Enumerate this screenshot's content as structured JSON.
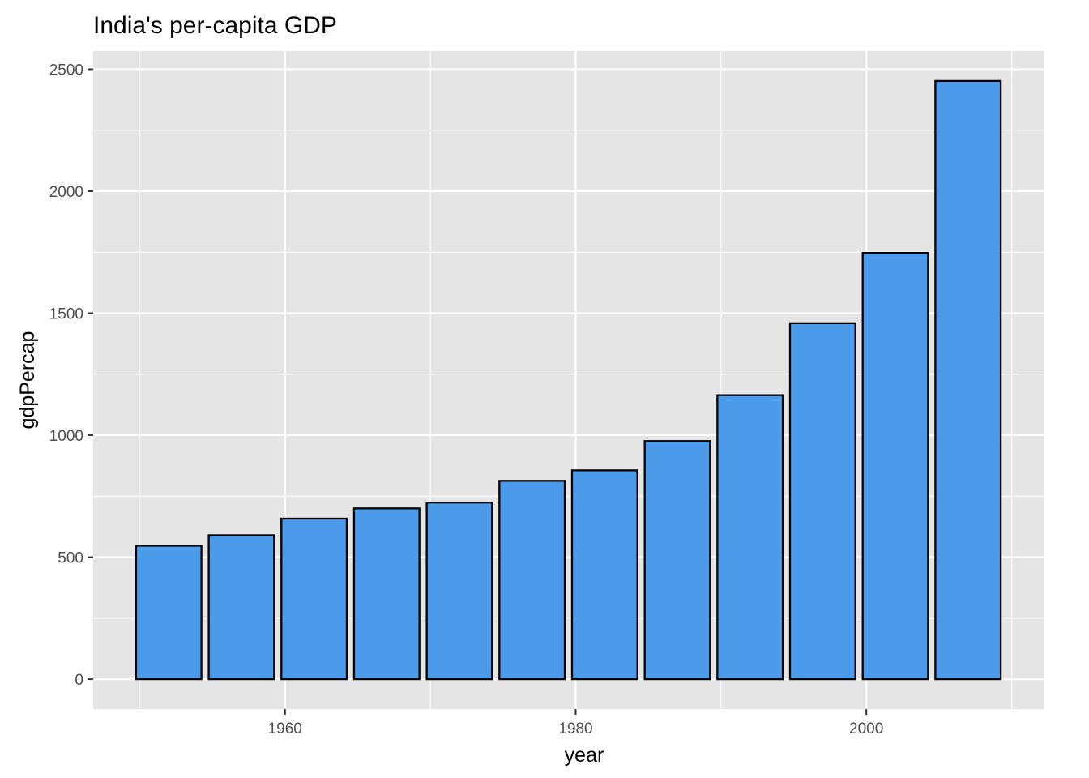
{
  "chart_data": {
    "type": "bar",
    "title": "India's per-capita GDP",
    "xlabel": "year",
    "ylabel": "gdpPercap",
    "x": [
      1952,
      1957,
      1962,
      1967,
      1972,
      1977,
      1982,
      1987,
      1992,
      1997,
      2002,
      2007
    ],
    "values": [
      547,
      590,
      658,
      700,
      724,
      813,
      856,
      976,
      1164,
      1459,
      1747,
      2452
    ],
    "xlim": [
      1946.8,
      2012.2
    ],
    "ylim": [
      -122.6,
      2574.6
    ],
    "x_ticks": [
      1960,
      1980,
      2000
    ],
    "x_minor_ticks": [
      1950,
      1970,
      1990,
      2010
    ],
    "y_ticks": [
      0,
      500,
      1000,
      1500,
      2000,
      2500
    ],
    "y_minor_ticks": [
      250,
      750,
      1250,
      1750,
      2250
    ],
    "grid": true,
    "colors": {
      "bar_fill": "#4c9aea",
      "bar_stroke": "#000000",
      "panel_background": "#e5e5e5",
      "grid": "#ffffff"
    }
  }
}
